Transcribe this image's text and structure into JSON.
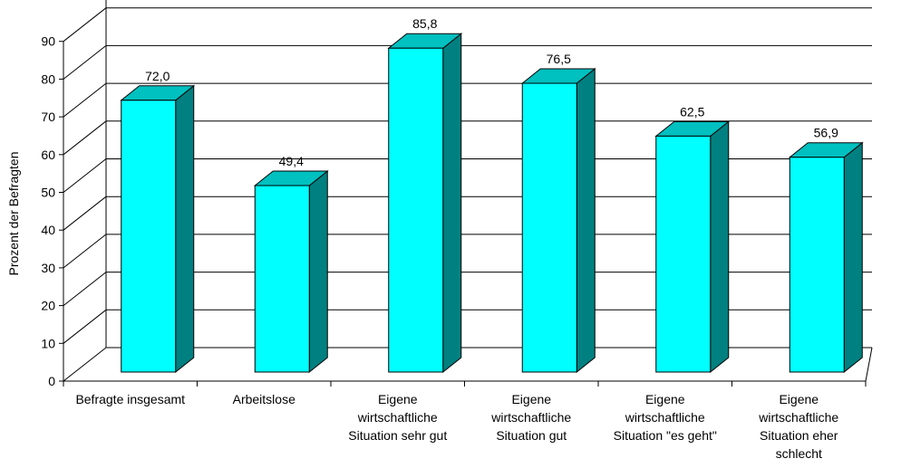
{
  "chart_data": {
    "type": "bar",
    "title": "",
    "xlabel": "",
    "ylabel": "Prozent der Befragten",
    "ylim": [
      0,
      90
    ],
    "yticks": [
      "0",
      "10",
      "20",
      "30",
      "40",
      "50",
      "60",
      "70",
      "80",
      "90"
    ],
    "grid": true,
    "three_d": true,
    "categories": [
      "Befragte insgesamt",
      "Arbeitslose",
      "Eigene wirtschaftliche Situation sehr gut",
      "Eigene wirtschaftliche Situation gut",
      "Eigene wirtschaftliche Situation \"es geht\"",
      "Eigene wirtschaftliche Situation eher schlecht"
    ],
    "category_lines": [
      [
        "Befragte insgesamt"
      ],
      [
        "Arbeitslose"
      ],
      [
        "Eigene",
        "wirtschaftliche",
        "Situation sehr gut"
      ],
      [
        "Eigene",
        "wirtschaftliche",
        "Situation gut"
      ],
      [
        "Eigene",
        "wirtschaftliche",
        "Situation \"es geht\""
      ],
      [
        "Eigene",
        "wirtschaftliche",
        "Situation eher",
        "schlecht"
      ]
    ],
    "values": [
      72.0,
      49.4,
      85.8,
      76.5,
      62.5,
      56.9
    ],
    "value_labels": [
      "72,0",
      "49,4",
      "85,8",
      "76,5",
      "62,5",
      "56,9"
    ],
    "colors": {
      "bar_front": "#00FFFF",
      "bar_top": "#00C0C0",
      "bar_side": "#008080",
      "grid": "#000000"
    }
  }
}
